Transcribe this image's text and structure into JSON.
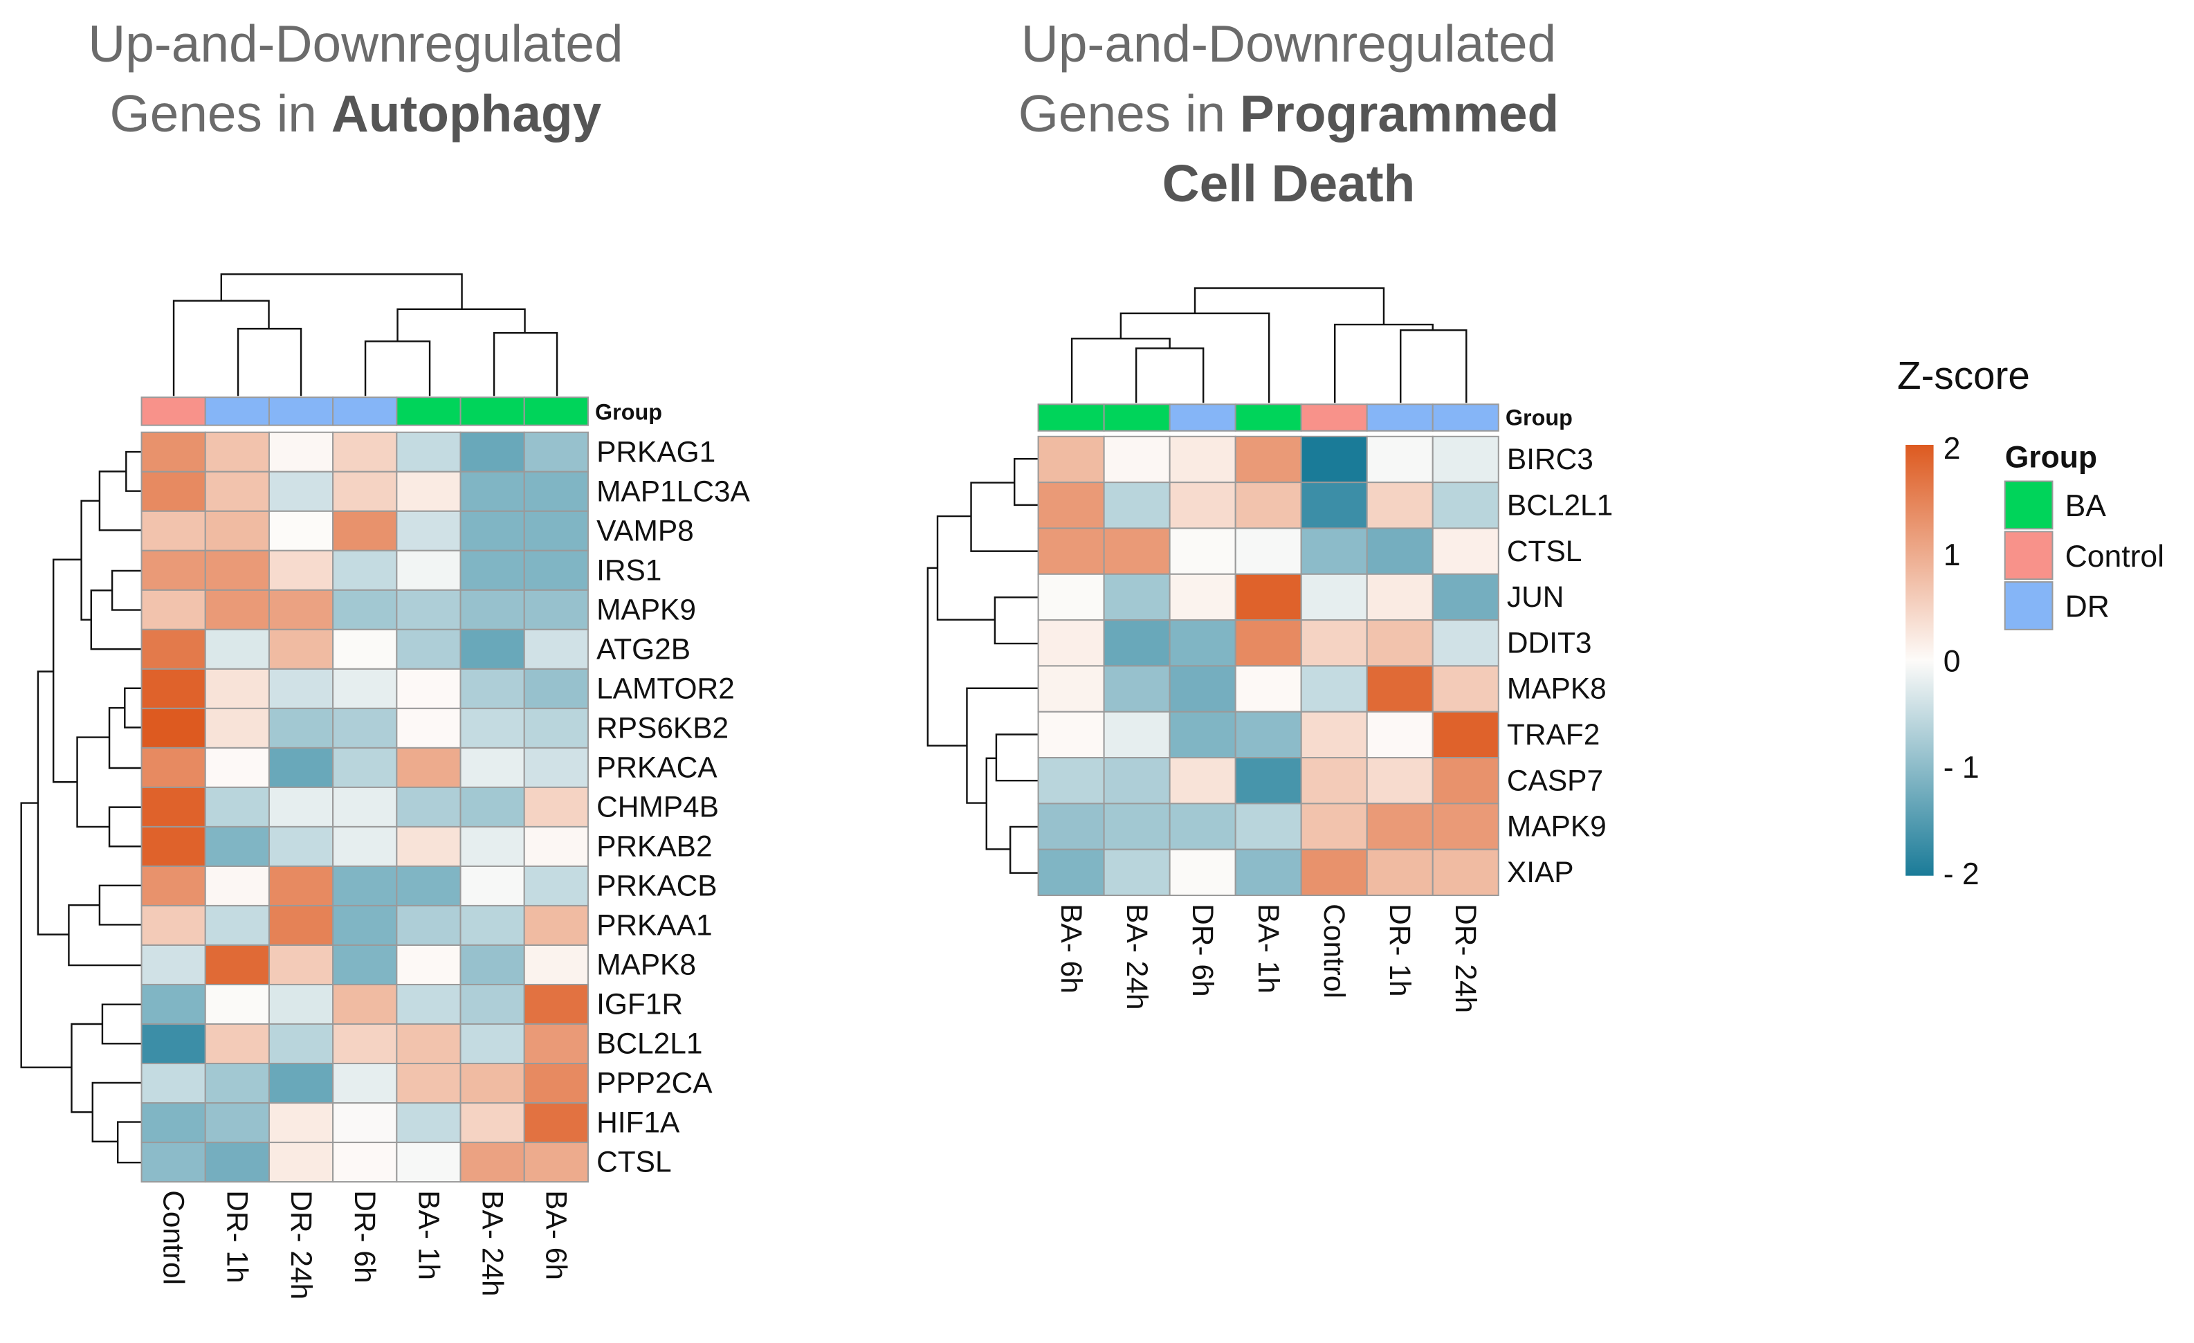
{
  "colors": {
    "high": "#dd5a20",
    "mid": "#fdfbf9",
    "low": "#1a7b98",
    "BA": "#00d45a",
    "Control": "#f8928a",
    "DR": "#85b5f7"
  },
  "legend": {
    "zscore_title": "Z-score",
    "ticks": [
      "2",
      "1",
      "0",
      "- 1",
      "- 2"
    ],
    "group_title": "Group",
    "groups": [
      "BA",
      "Control",
      "DR"
    ]
  },
  "chart_data": [
    {
      "type": "heatmap",
      "title_line1": "Up-and-Downregulated",
      "title_line2_plain": "Genes in ",
      "title_line2_bold": "Autophagy",
      "annotation_label": "Group",
      "zlim": [
        -2,
        2
      ],
      "columns": [
        "Control",
        "DR- 1h",
        "DR- 24h",
        "DR- 6h",
        "BA- 1h",
        "BA- 24h",
        "BA- 6h"
      ],
      "column_groups": [
        "Control",
        "DR",
        "DR",
        "DR",
        "BA",
        "BA",
        "BA"
      ],
      "rows": [
        "PRKAG1",
        "MAP1LC3A",
        "VAMP8",
        "IRS1",
        "MAPK9",
        "ATG2B",
        "LAMTOR2",
        "RPS6KB2",
        "PRKACA",
        "CHMP4B",
        "PRKAB2",
        "PRKACB",
        "PRKAA1",
        "MAPK8",
        "IGF1R",
        "BCL2L1",
        "PPP2CA",
        "HIF1A",
        "CTSL"
      ],
      "values": [
        [
          1.3,
          0.7,
          0.05,
          0.5,
          -0.5,
          -1.3,
          -0.9
        ],
        [
          1.4,
          0.7,
          -0.4,
          0.5,
          0.2,
          -1.1,
          -1.1
        ],
        [
          0.7,
          0.8,
          0.0,
          1.3,
          -0.4,
          -1.1,
          -1.1
        ],
        [
          1.2,
          1.2,
          0.4,
          -0.5,
          -0.1,
          -1.1,
          -1.1
        ],
        [
          0.7,
          1.2,
          1.1,
          -0.8,
          -0.7,
          -0.9,
          -0.9
        ],
        [
          1.6,
          -0.3,
          0.8,
          -0.02,
          -0.7,
          -1.3,
          -0.4
        ],
        [
          1.9,
          0.3,
          -0.4,
          -0.2,
          0.02,
          -0.7,
          -0.9
        ],
        [
          2.0,
          0.3,
          -0.8,
          -0.7,
          0.02,
          -0.5,
          -0.6
        ],
        [
          1.4,
          0.02,
          -1.3,
          -0.6,
          1.0,
          -0.2,
          -0.4
        ],
        [
          1.9,
          -0.6,
          -0.2,
          -0.2,
          -0.7,
          -0.8,
          0.5
        ],
        [
          1.9,
          -1.1,
          -0.5,
          -0.2,
          0.3,
          -0.2,
          0.05
        ],
        [
          1.3,
          0.05,
          1.4,
          -1.1,
          -1.1,
          -0.05,
          -0.5
        ],
        [
          0.6,
          -0.5,
          1.5,
          -1.1,
          -0.7,
          -0.6,
          0.8
        ],
        [
          -0.4,
          1.8,
          0.6,
          -1.1,
          0.03,
          -0.9,
          0.1
        ],
        [
          -1.1,
          -0.02,
          -0.3,
          0.8,
          -0.5,
          -0.7,
          1.7
        ],
        [
          -1.7,
          0.6,
          -0.6,
          0.5,
          0.7,
          -0.5,
          1.2
        ],
        [
          -0.5,
          -0.8,
          -1.3,
          -0.2,
          0.7,
          0.8,
          1.4
        ],
        [
          -1.1,
          -0.9,
          0.2,
          -0.03,
          -0.5,
          0.5,
          1.7
        ],
        [
          -1.0,
          -1.2,
          0.2,
          0.02,
          -0.05,
          1.1,
          1.0
        ]
      ]
    },
    {
      "type": "heatmap",
      "title_line1": "Up-and-Downregulated",
      "title_line2_plain": "Genes in ",
      "title_line2_bold": "Programmed",
      "title_line3_bold": "Cell Death",
      "annotation_label": "Group",
      "zlim": [
        -2,
        2
      ],
      "columns": [
        "BA- 6h",
        "BA- 24h",
        "DR- 6h",
        "BA- 1h",
        "Control",
        "DR- 1h",
        "DR- 24h"
      ],
      "column_groups": [
        "BA",
        "BA",
        "DR",
        "BA",
        "Control",
        "DR",
        "DR"
      ],
      "rows": [
        "BIRC3",
        "BCL2L1",
        "CTSL",
        "JUN",
        "DDIT3",
        "MAPK8",
        "TRAF2",
        "CASP7",
        "MAPK9",
        "XIAP"
      ],
      "values": [
        [
          0.8,
          0.05,
          0.2,
          1.2,
          -2.0,
          -0.05,
          -0.2
        ],
        [
          1.2,
          -0.6,
          0.4,
          0.7,
          -1.7,
          0.5,
          -0.6
        ],
        [
          1.2,
          1.2,
          -0.02,
          -0.05,
          -1.0,
          -1.2,
          0.15
        ],
        [
          -0.02,
          -0.8,
          0.1,
          1.9,
          -0.2,
          0.2,
          -1.2
        ],
        [
          0.15,
          -1.3,
          -1.1,
          1.4,
          0.5,
          0.7,
          -0.4
        ],
        [
          0.1,
          -0.9,
          -1.2,
          0.03,
          -0.5,
          1.8,
          0.6
        ],
        [
          0.03,
          -0.2,
          -1.1,
          -1.0,
          0.4,
          0.02,
          1.9
        ],
        [
          -0.6,
          -0.7,
          0.3,
          -1.6,
          0.6,
          0.4,
          1.3
        ],
        [
          -0.9,
          -0.8,
          -0.8,
          -0.6,
          0.7,
          1.2,
          1.2
        ],
        [
          -1.1,
          -0.6,
          -0.02,
          -1.0,
          1.3,
          0.8,
          0.8
        ]
      ]
    }
  ]
}
